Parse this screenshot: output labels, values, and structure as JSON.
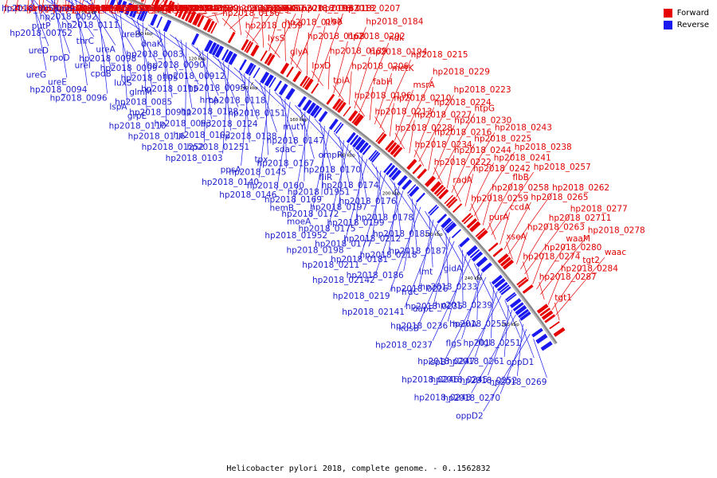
{
  "caption": "Helicobacter pylori 2018, complete genome. - 0..1562832",
  "legend": {
    "forward_label": "Forward",
    "reverse_label": "Reverse",
    "forward_color": "#e60000",
    "reverse_color": "#1a1af0"
  },
  "ticks": [
    "60 kbp",
    "80 kbp",
    "100 kbp",
    "120 kbp",
    "140 kbp",
    "160 kbp",
    "180 kbp",
    "200 kbp",
    "220 kbp",
    "240 kbp",
    "260 kbp"
  ],
  "forward_labels": [
    "ftsK",
    "ftsK1",
    "omp3",
    "hp2018_0086",
    "prfA",
    "hp2018_0089",
    "hp2018_0101",
    "hp2018_0108",
    "hp2018_0100",
    "tlpA",
    "hp2018_0104",
    "hp2018_0112",
    "hp2018_0137",
    "hp2018_0133",
    "hp2018_0132",
    "hp2018_0127",
    "hp2018_0123",
    "hp2018_01221",
    "hp2018_01222",
    "topA",
    "thiS",
    "hp2018_0130",
    "hp2018_0143",
    "hp2018_0136",
    "hp2018_0135",
    "hp2018_0142",
    "hp2018_0139",
    "lldP_2",
    "fixP",
    "fixQ",
    "lldP_1",
    "fixO",
    "fixN",
    "arok",
    "hp2018_0158",
    "hp2018_0157",
    "hp2018_0156",
    "hp2018_0164",
    "hp2018_0163",
    "recA",
    "hp2018_0159",
    "eno",
    "pgiG",
    "hp2018_0193",
    "lysS",
    "hp2018_0190",
    "hp2018_0183",
    "hp2018_0182",
    "glyA",
    "hp2018_0168",
    "plsX",
    "hp2018_0207",
    "lpxD",
    "hp2018_0189",
    "hp2018_0202",
    "hp2018_0184",
    "tpiA",
    "hp2018_0206",
    "hp2018_0194",
    "ndk",
    "hp2018_0196",
    "fabH",
    "metK",
    "hp2018_0215",
    "hp2018_0213",
    "hp2018_0210",
    "msrA",
    "hp2018_0229",
    "hp2018_0228",
    "hp2018_0227",
    "hp2018_0224",
    "hp2018_0223",
    "hp2018_0234",
    "hp2018_0216",
    "hp2018_0230",
    "htpG",
    "hp2018_0222",
    "hp2018_0244",
    "hp2018_0225",
    "hp2018_0243",
    "radA",
    "hp2018_0242",
    "hp2018_0241",
    "hp2018_0238",
    "hp2018_0259",
    "hp2018_0258",
    "flbB",
    "hp2018_0257",
    "purA",
    "ccdA",
    "hp2018_0265",
    "hp2018_0262",
    "xseA",
    "hp2018_0263",
    "hp2018_02711",
    "hp2018_0277",
    "hp2018_0274",
    "hp2018_0280",
    "waaM",
    "hp2018_0278",
    "hp2018_0287",
    "hp2018_0284",
    "tgt2",
    "waac",
    "tgt1"
  ],
  "reverse_labels": [
    "hp2018_0058",
    "putP",
    "ureD",
    "ureG",
    "ureF",
    "hp2018_00752",
    "rpoD",
    "ureE",
    "hp2018_0092",
    "thrC",
    "ureI",
    "hp2018_0094",
    "hp2018_0111",
    "ureA",
    "cpdB",
    "hp2018_0096",
    "ureB",
    "hp2018_0098",
    "luxS",
    "lspA",
    "dnaK",
    "hp2018_0099",
    "glmM",
    "grpE",
    "hp2018_0083",
    "hp2018_0105",
    "hp2018_0085",
    "hp2018_0110",
    "hp2018_0090",
    "hp2018_0115",
    "hp2018_00911",
    "hp2018_0116",
    "hp2018_00912",
    "hrcA",
    "hp2018_0093",
    "hp2018_01252",
    "hp2018_0095",
    "hp2018_0128",
    "hp2018_0102",
    "hp2018_0103",
    "hp2018_0118",
    "hp2018_0124",
    "hp2018_01251",
    "ppsA",
    "hp2018_0151",
    "hp2018_0138",
    "tpx",
    "hp2018_0140",
    "mutY",
    "sdaC",
    "hp2018_0145",
    "hp2018_0146",
    "hp2018_0147",
    "hp2018_0167",
    "hp2018_0160",
    "hemB",
    "ompR",
    "fliR",
    "hp2018_0169",
    "moeA",
    "hp2018_0170",
    "hp2018_01951",
    "hp2018_0172",
    "hp2018_01952",
    "hp2018_0174",
    "hp2018_0197",
    "hp2018_0175",
    "hp2018_0198",
    "hp2018_0176",
    "hp2018_0199",
    "hp2018_0177",
    "hp2018_0211",
    "hp2018_0178",
    "hp2018_0212",
    "hp2018_0181",
    "hp2018_02142",
    "hp2018_0185",
    "hp2018_0218",
    "hp2018_0186",
    "hp2018_0219",
    "hp2018_0187",
    "lmt",
    "frdC",
    "hp2018_02141",
    "gidA",
    "hp2018_0226",
    "dapE",
    "kdsB",
    "hp2018_0233",
    "hp2018_0235",
    "hp2018_0236",
    "hp2018_0237",
    "hp2018_0239",
    "hemA",
    "flgS",
    "ispB",
    "hp2018_0255",
    "flgI",
    "hp2018_0247",
    "hp2018_0246",
    "hp2018_0251",
    "hp2018_0261",
    "hp2018_0245",
    "hp2018_0248",
    "oppD1",
    "hp2018_0252",
    "hp2018_0270",
    "oppD2",
    "hp2018_0269"
  ]
}
